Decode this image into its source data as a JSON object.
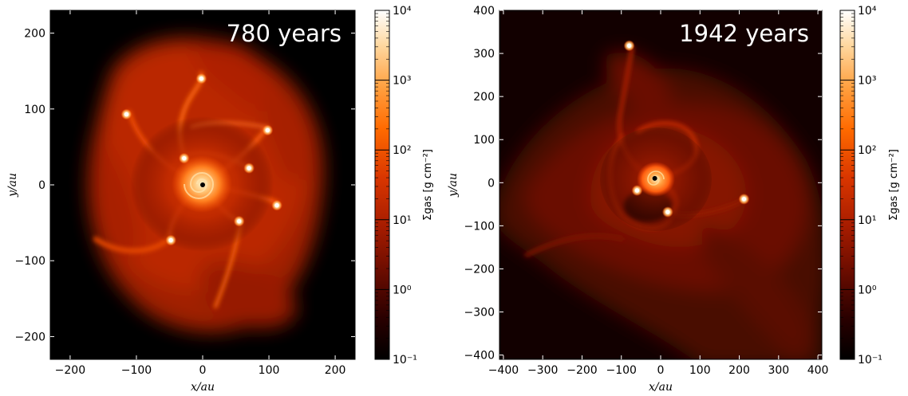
{
  "chart_data": [
    {
      "type": "heatmap",
      "annotation": "780 years",
      "xlabel": "x/au",
      "ylabel": "y/au",
      "xlim": [
        -230,
        230
      ],
      "ylim": [
        -230,
        230
      ],
      "xticks": [
        -200,
        -100,
        0,
        100,
        200
      ],
      "yticks": [
        -200,
        -100,
        0,
        100,
        200
      ],
      "xtick_labels": [
        "−200",
        "−100",
        "0",
        "100",
        "200"
      ],
      "ytick_labels": [
        "−200",
        "−100",
        "0",
        "100",
        "200"
      ],
      "colorbar": {
        "label": "Σgas [g cm⁻²]",
        "scale": "log",
        "range": [
          0.1,
          10000
        ],
        "ticks": [
          0.1,
          1,
          10,
          100,
          1000,
          10000
        ],
        "tick_labels": [
          "10⁻¹",
          "10⁰",
          "10¹",
          "10²",
          "10³",
          "10⁴"
        ]
      },
      "colormap": [
        "#000000",
        "#2a0000",
        "#6a0c00",
        "#a61c00",
        "#d93600",
        "#ff6a00",
        "#ffa040",
        "#ffd8a0",
        "#ffffff"
      ],
      "clumps": [
        {
          "x": 0,
          "y": 0
        },
        {
          "x": -115,
          "y": 93
        },
        {
          "x": -2,
          "y": 140
        },
        {
          "x": 98,
          "y": 72
        },
        {
          "x": -28,
          "y": 35
        },
        {
          "x": 70,
          "y": 22
        },
        {
          "x": 112,
          "y": -27
        },
        {
          "x": 55,
          "y": -48
        },
        {
          "x": -48,
          "y": -73
        }
      ]
    },
    {
      "type": "heatmap",
      "annotation": "1942 years",
      "xlabel": "x/au",
      "ylabel": "y/au",
      "xlim": [
        -410,
        410
      ],
      "ylim": [
        -410,
        400
      ],
      "xticks": [
        -400,
        -300,
        -200,
        -100,
        0,
        100,
        200,
        300,
        400
      ],
      "yticks": [
        -400,
        -300,
        -200,
        -100,
        0,
        100,
        200,
        300,
        400
      ],
      "xtick_labels": [
        "−400",
        "−300",
        "−200",
        "−100",
        "0",
        "100",
        "200",
        "300",
        "400"
      ],
      "ytick_labels": [
        "−400",
        "−300",
        "−200",
        "−100",
        "0",
        "100",
        "200",
        "300",
        "400"
      ],
      "colorbar": {
        "label": "Σgas [g cm⁻²]",
        "scale": "log",
        "range": [
          0.1,
          10000
        ],
        "ticks": [
          0.1,
          1,
          10,
          100,
          1000,
          10000
        ],
        "tick_labels": [
          "10⁻¹",
          "10⁰",
          "10¹",
          "10²",
          "10³",
          "10⁴"
        ]
      },
      "colormap": [
        "#000000",
        "#2a0000",
        "#6a0c00",
        "#a61c00",
        "#d93600",
        "#ff6a00",
        "#ffa040",
        "#ffd8a0",
        "#ffffff"
      ],
      "clumps": [
        {
          "x": -15,
          "y": 10
        },
        {
          "x": -80,
          "y": 318
        },
        {
          "x": -60,
          "y": -18
        },
        {
          "x": 18,
          "y": -68
        },
        {
          "x": 212,
          "y": -38
        }
      ]
    }
  ]
}
